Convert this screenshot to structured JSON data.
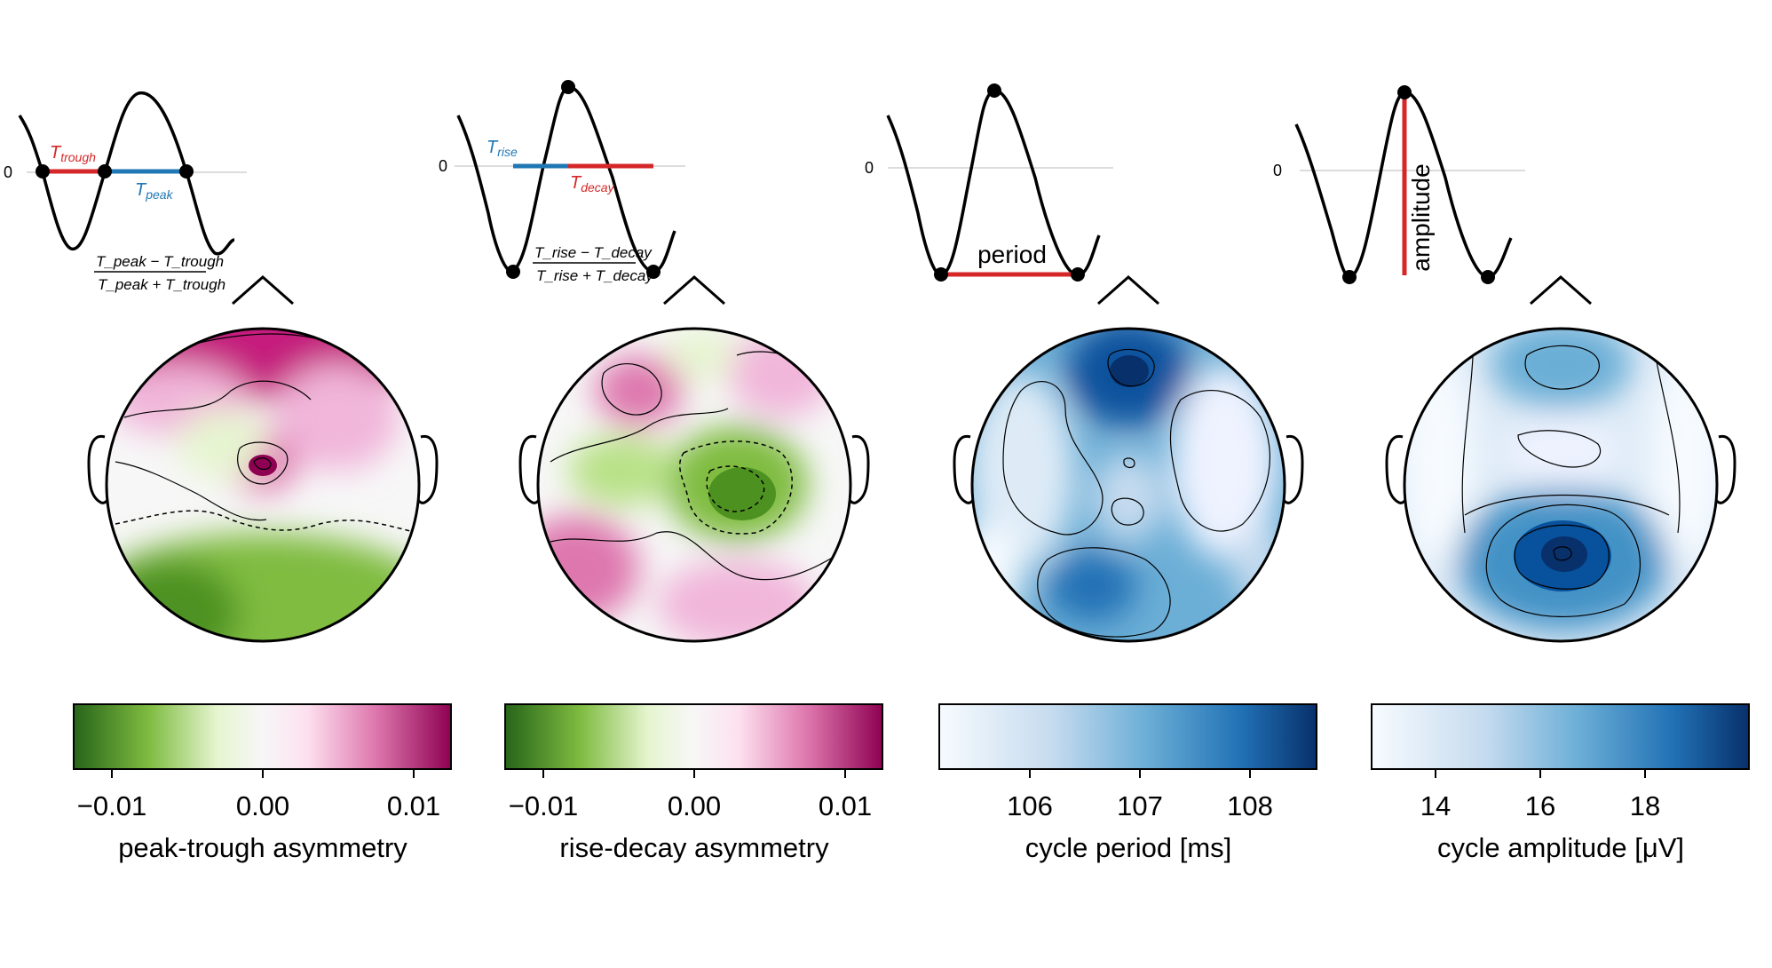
{
  "panels": [
    {
      "id": "peak-trough",
      "zero_label": "0",
      "annotation_a": "T",
      "annotation_a_sub": "trough",
      "annotation_b": "T",
      "annotation_b_sub": "peak",
      "formula_num": "T_peak − T_trough",
      "formula_den": "T_peak + T_trough",
      "colormap": "PiYG_reversed",
      "colorbar": {
        "ticks": [
          "−0.01",
          "0.00",
          "0.01"
        ],
        "label": "peak-trough asymmetry"
      }
    },
    {
      "id": "rise-decay",
      "zero_label": "0",
      "annotation_a": "T",
      "annotation_a_sub": "rise",
      "annotation_b": "T",
      "annotation_b_sub": "decay",
      "formula_num": "T_rise − T_decay",
      "formula_den": "T_rise + T_decay",
      "colormap": "PiYG_reversed",
      "colorbar": {
        "ticks": [
          "−0.01",
          "0.00",
          "0.01"
        ],
        "label": "rise-decay asymmetry"
      }
    },
    {
      "id": "period",
      "zero_label": "0",
      "annotation": "period",
      "colormap": "Blues",
      "colorbar": {
        "ticks": [
          "106",
          "107",
          "108"
        ],
        "label": "cycle period [ms]"
      }
    },
    {
      "id": "amplitude",
      "zero_label": "0",
      "annotation": "amplitude",
      "colormap": "Blues",
      "colorbar": {
        "ticks": [
          "14",
          "16",
          "18"
        ],
        "label": "cycle amplitude [μV]"
      }
    }
  ],
  "colors": {
    "red": "#d62728",
    "blue": "#1f77b4",
    "pink_dark": "#8e0152",
    "pink_mid": "#de77ae",
    "pink_light": "#fde0ef",
    "neutral": "#f7f7f7",
    "green_light": "#e6f5d0",
    "green_mid": "#7fbc41",
    "green_dark": "#276419",
    "blue_light": "#f7fbff",
    "blue_mid": "#6baed6",
    "blue_dark": "#08306b"
  }
}
